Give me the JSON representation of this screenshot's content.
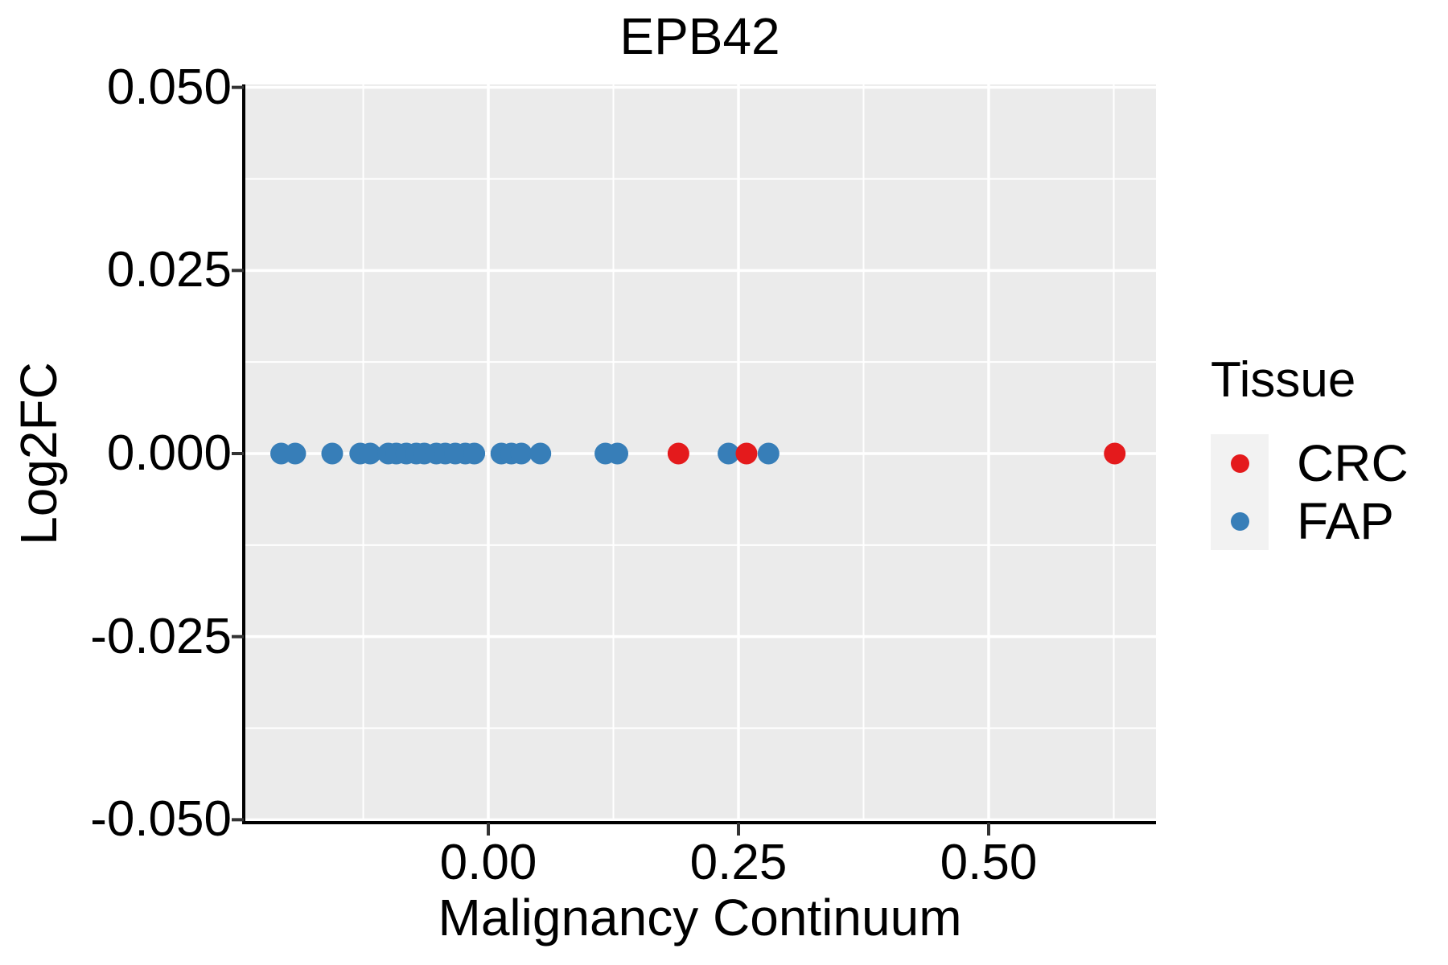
{
  "title": "EPB42",
  "colors": {
    "panel_background": "#EBEBEB",
    "gridline": "#FFFFFF",
    "axis_line": "#000000",
    "tick_mark": "#333333",
    "text": "#000000",
    "legend_key_background": "#F2F2F2",
    "crc": "#E41A1C",
    "fap": "#377EB8"
  },
  "chart_data": {
    "type": "scatter",
    "title": "EPB42",
    "xlabel": "Malignancy Continuum",
    "ylabel": "Log2FC",
    "xlim": [
      -0.2444,
      0.6672
    ],
    "ylim": [
      -0.0504,
      0.0504
    ],
    "x_ticks": {
      "labels": [
        "0.00",
        "0.25",
        "0.50"
      ],
      "values": [
        0,
        0.25,
        0.5
      ]
    },
    "y_ticks": {
      "labels": [
        "0.050",
        "0.025",
        "0.000",
        "-0.025",
        "-0.050"
      ],
      "values": [
        0.05,
        0.025,
        0,
        -0.025,
        -0.05
      ]
    },
    "grid": "major-and-minor",
    "legend_position": "right",
    "legend": {
      "title": "Tissue"
    },
    "series": [
      {
        "name": "CRC",
        "color": "#E41A1C",
        "x": [
          0.19,
          0.258,
          0.626
        ],
        "y": [
          0,
          0,
          0
        ]
      },
      {
        "name": "FAP",
        "color": "#377EB8",
        "x": [
          -0.207,
          -0.193,
          -0.156,
          -0.128,
          -0.118,
          -0.1,
          -0.092,
          -0.082,
          -0.072,
          -0.064,
          -0.052,
          -0.043,
          -0.033,
          -0.023,
          -0.014,
          0.013,
          0.023,
          0.033,
          0.052,
          0.117,
          0.129,
          0.24,
          0.28
        ],
        "y": [
          0,
          0,
          0,
          0,
          0,
          0,
          0,
          0,
          0,
          0,
          0,
          0,
          0,
          0,
          0,
          0,
          0,
          0,
          0,
          0,
          0,
          0,
          0
        ]
      }
    ]
  }
}
